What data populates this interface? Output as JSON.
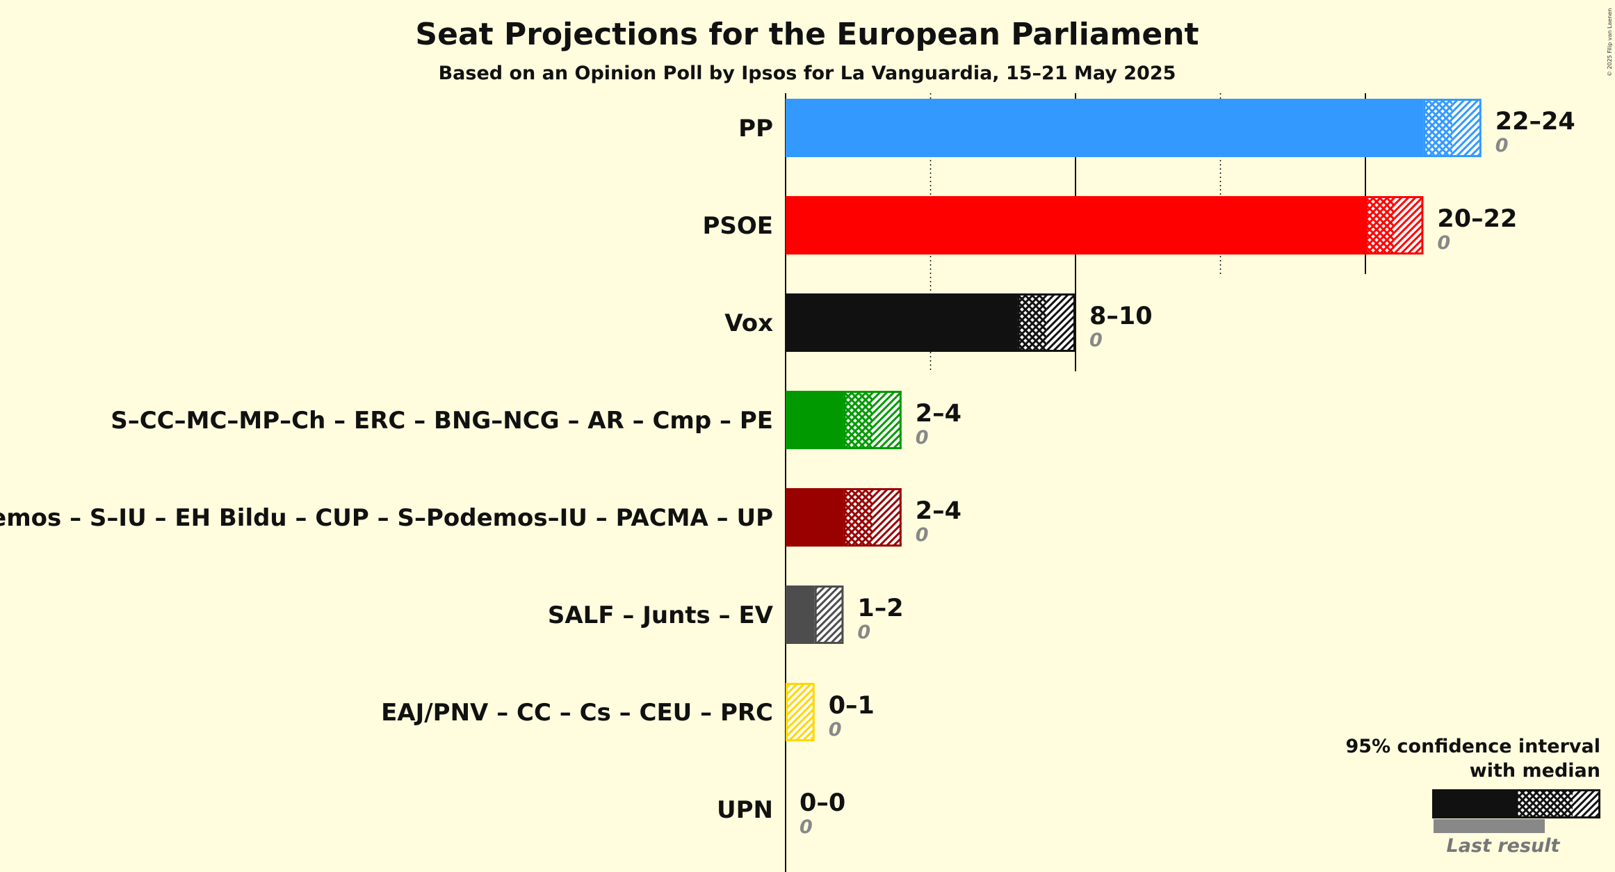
{
  "chart_data": {
    "type": "bar",
    "title": "Seat Projections for the European Parliament",
    "subtitle": "Based on an Opinion Poll by Ipsos for La Vanguardia, 15–21 May 2025",
    "copyright": "© 2025 Filip van Laenen",
    "xlim": [
      0,
      24
    ],
    "gridlines": [
      5,
      10,
      15,
      20
    ],
    "major_gridlines": [
      10,
      20
    ],
    "series": [
      {
        "party": "PP",
        "color": "#3399ff",
        "low": 22,
        "median": 23,
        "high": 24,
        "label": "22–24",
        "last_result": 0,
        "last_label": "0"
      },
      {
        "party": "PSOE",
        "color": "#ff0000",
        "low": 20,
        "median": 21,
        "high": 22,
        "label": "20–22",
        "last_result": 0,
        "last_label": "0"
      },
      {
        "party": "Vox",
        "color": "#111111",
        "low": 8,
        "median": 9,
        "high": 10,
        "label": "8–10",
        "last_result": 0,
        "last_label": "0"
      },
      {
        "party": "S–CC–MC–MP–Ch – ERC – BNG–NCG – AR – Cmp – PE",
        "color": "#009900",
        "low": 2,
        "median": 3,
        "high": 4,
        "label": "2–4",
        "last_result": 0,
        "last_label": "0"
      },
      {
        "party": "Podemos – S–IU – EH Bildu – CUP – S–Podemos–IU – PACMA – UP",
        "color": "#990000",
        "low": 2,
        "median": 3,
        "high": 4,
        "label": "2–4",
        "last_result": 0,
        "last_label": "0"
      },
      {
        "party": "SALF – Junts – EV",
        "color": "#4d4d4d",
        "low": 1,
        "median": 1,
        "high": 2,
        "label": "1–2",
        "last_result": 0,
        "last_label": "0"
      },
      {
        "party": "EAJ/PNV – CC – Cs – CEU – PRC",
        "color": "#ffd700",
        "low": 0,
        "median": 0,
        "high": 1,
        "label": "0–1",
        "last_result": 0,
        "last_label": "0"
      },
      {
        "party": "UPN",
        "color": "#3399ff",
        "low": 0,
        "median": 0,
        "high": 0,
        "label": "0–0",
        "last_result": 0,
        "last_label": "0"
      }
    ],
    "legend": {
      "line1": "95% confidence interval",
      "line2": "with median",
      "last": "Last result",
      "color": "#111111"
    }
  }
}
